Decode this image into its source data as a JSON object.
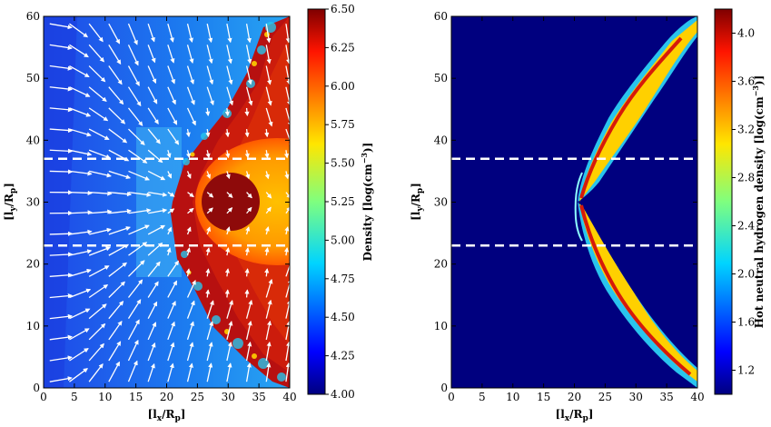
{
  "chart_data": [
    {
      "type": "heatmap",
      "xlabel": "[l_x/R_p]",
      "ylabel": "[l_y/R_p]",
      "xlim": [
        0,
        40
      ],
      "ylim": [
        0,
        60
      ],
      "xticks": [
        "0",
        "5",
        "10",
        "15",
        "20",
        "25",
        "30",
        "35",
        "40"
      ],
      "yticks": [
        "0",
        "10",
        "20",
        "30",
        "40",
        "50",
        "60"
      ],
      "colorbar_label": "Density [log(cm^-3)]",
      "colorbar_range": [
        4.0,
        6.5
      ],
      "colorbar_ticks": [
        "4.00",
        "4.25",
        "4.50",
        "4.75",
        "5.00",
        "5.25",
        "5.50",
        "5.75",
        "6.00",
        "6.25",
        "6.50"
      ],
      "dashed_lines_y": [
        23,
        37
      ],
      "bow_shock_x_at_center": 20,
      "planet_center": [
        30,
        30
      ],
      "vector_field": "velocity arrows (white)"
    },
    {
      "type": "heatmap",
      "xlabel": "[l_x/R_p]",
      "ylabel": "[l_y/R_p]",
      "xlim": [
        0,
        40
      ],
      "ylim": [
        0,
        60
      ],
      "xticks": [
        "0",
        "5",
        "10",
        "15",
        "20",
        "25",
        "30",
        "35",
        "40"
      ],
      "yticks": [
        "0",
        "10",
        "20",
        "30",
        "40",
        "50",
        "60"
      ],
      "colorbar_label": "Hot neutral hydrogen density [log(cm^-3)]",
      "colorbar_range": [
        1.0,
        4.2
      ],
      "colorbar_ticks": [
        "1.2",
        "1.6",
        "2.0",
        "2.4",
        "2.8",
        "3.2",
        "3.6",
        "4.0"
      ],
      "dashed_lines_y": [
        23,
        37
      ]
    }
  ]
}
